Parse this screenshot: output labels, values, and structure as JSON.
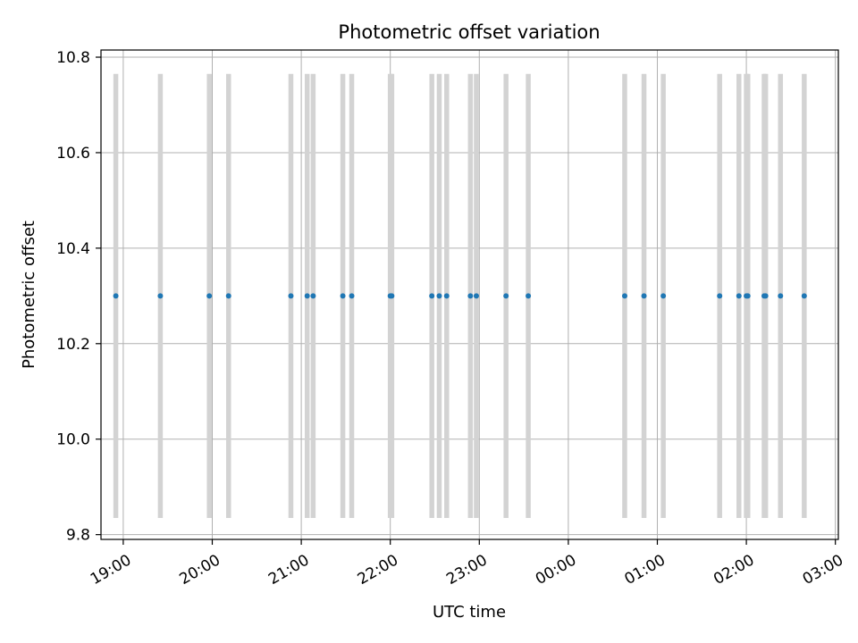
{
  "chart_data": {
    "type": "scatter",
    "title": "Photometric offset variation",
    "xlabel": "UTC time",
    "ylabel": "Photometric offset",
    "xlim": [
      "2023-01-01T18:45",
      "2023-01-02T03:02"
    ],
    "ylim": [
      9.79,
      10.815
    ],
    "x_ticks": [
      "19:00",
      "20:00",
      "21:00",
      "22:00",
      "23:00",
      "00:00",
      "01:00",
      "02:00",
      "03:00"
    ],
    "y_ticks": [
      9.8,
      10.0,
      10.2,
      10.4,
      10.6,
      10.8
    ],
    "y_tick_labels": [
      "9.8",
      "10.0",
      "10.2",
      "10.4",
      "10.6",
      "10.8"
    ],
    "grid": true,
    "marker_color": "#1f77b4",
    "errorbar_color": "#d3d3d3",
    "series": [
      {
        "x": [
          "18:55",
          "19:25",
          "19:58",
          "20:11",
          "20:53",
          "21:04",
          "21:08",
          "21:28",
          "21:34",
          "22:00",
          "22:01",
          "22:28",
          "22:33",
          "22:38",
          "22:54",
          "22:58",
          "23:18",
          "23:33",
          "00:38",
          "00:51",
          "01:04",
          "01:42",
          "01:55",
          "02:00",
          "02:01",
          "02:12",
          "02:13",
          "02:23",
          "02:39"
        ],
        "y": [
          10.3,
          10.3,
          10.3,
          10.3,
          10.3,
          10.3,
          10.3,
          10.3,
          10.3,
          10.3,
          10.3,
          10.3,
          10.3,
          10.3,
          10.3,
          10.3,
          10.3,
          10.3,
          10.3,
          10.3,
          10.3,
          10.3,
          10.3,
          10.3,
          10.3,
          10.3,
          10.3,
          10.3,
          10.3
        ],
        "yerr": 0.465
      }
    ]
  }
}
